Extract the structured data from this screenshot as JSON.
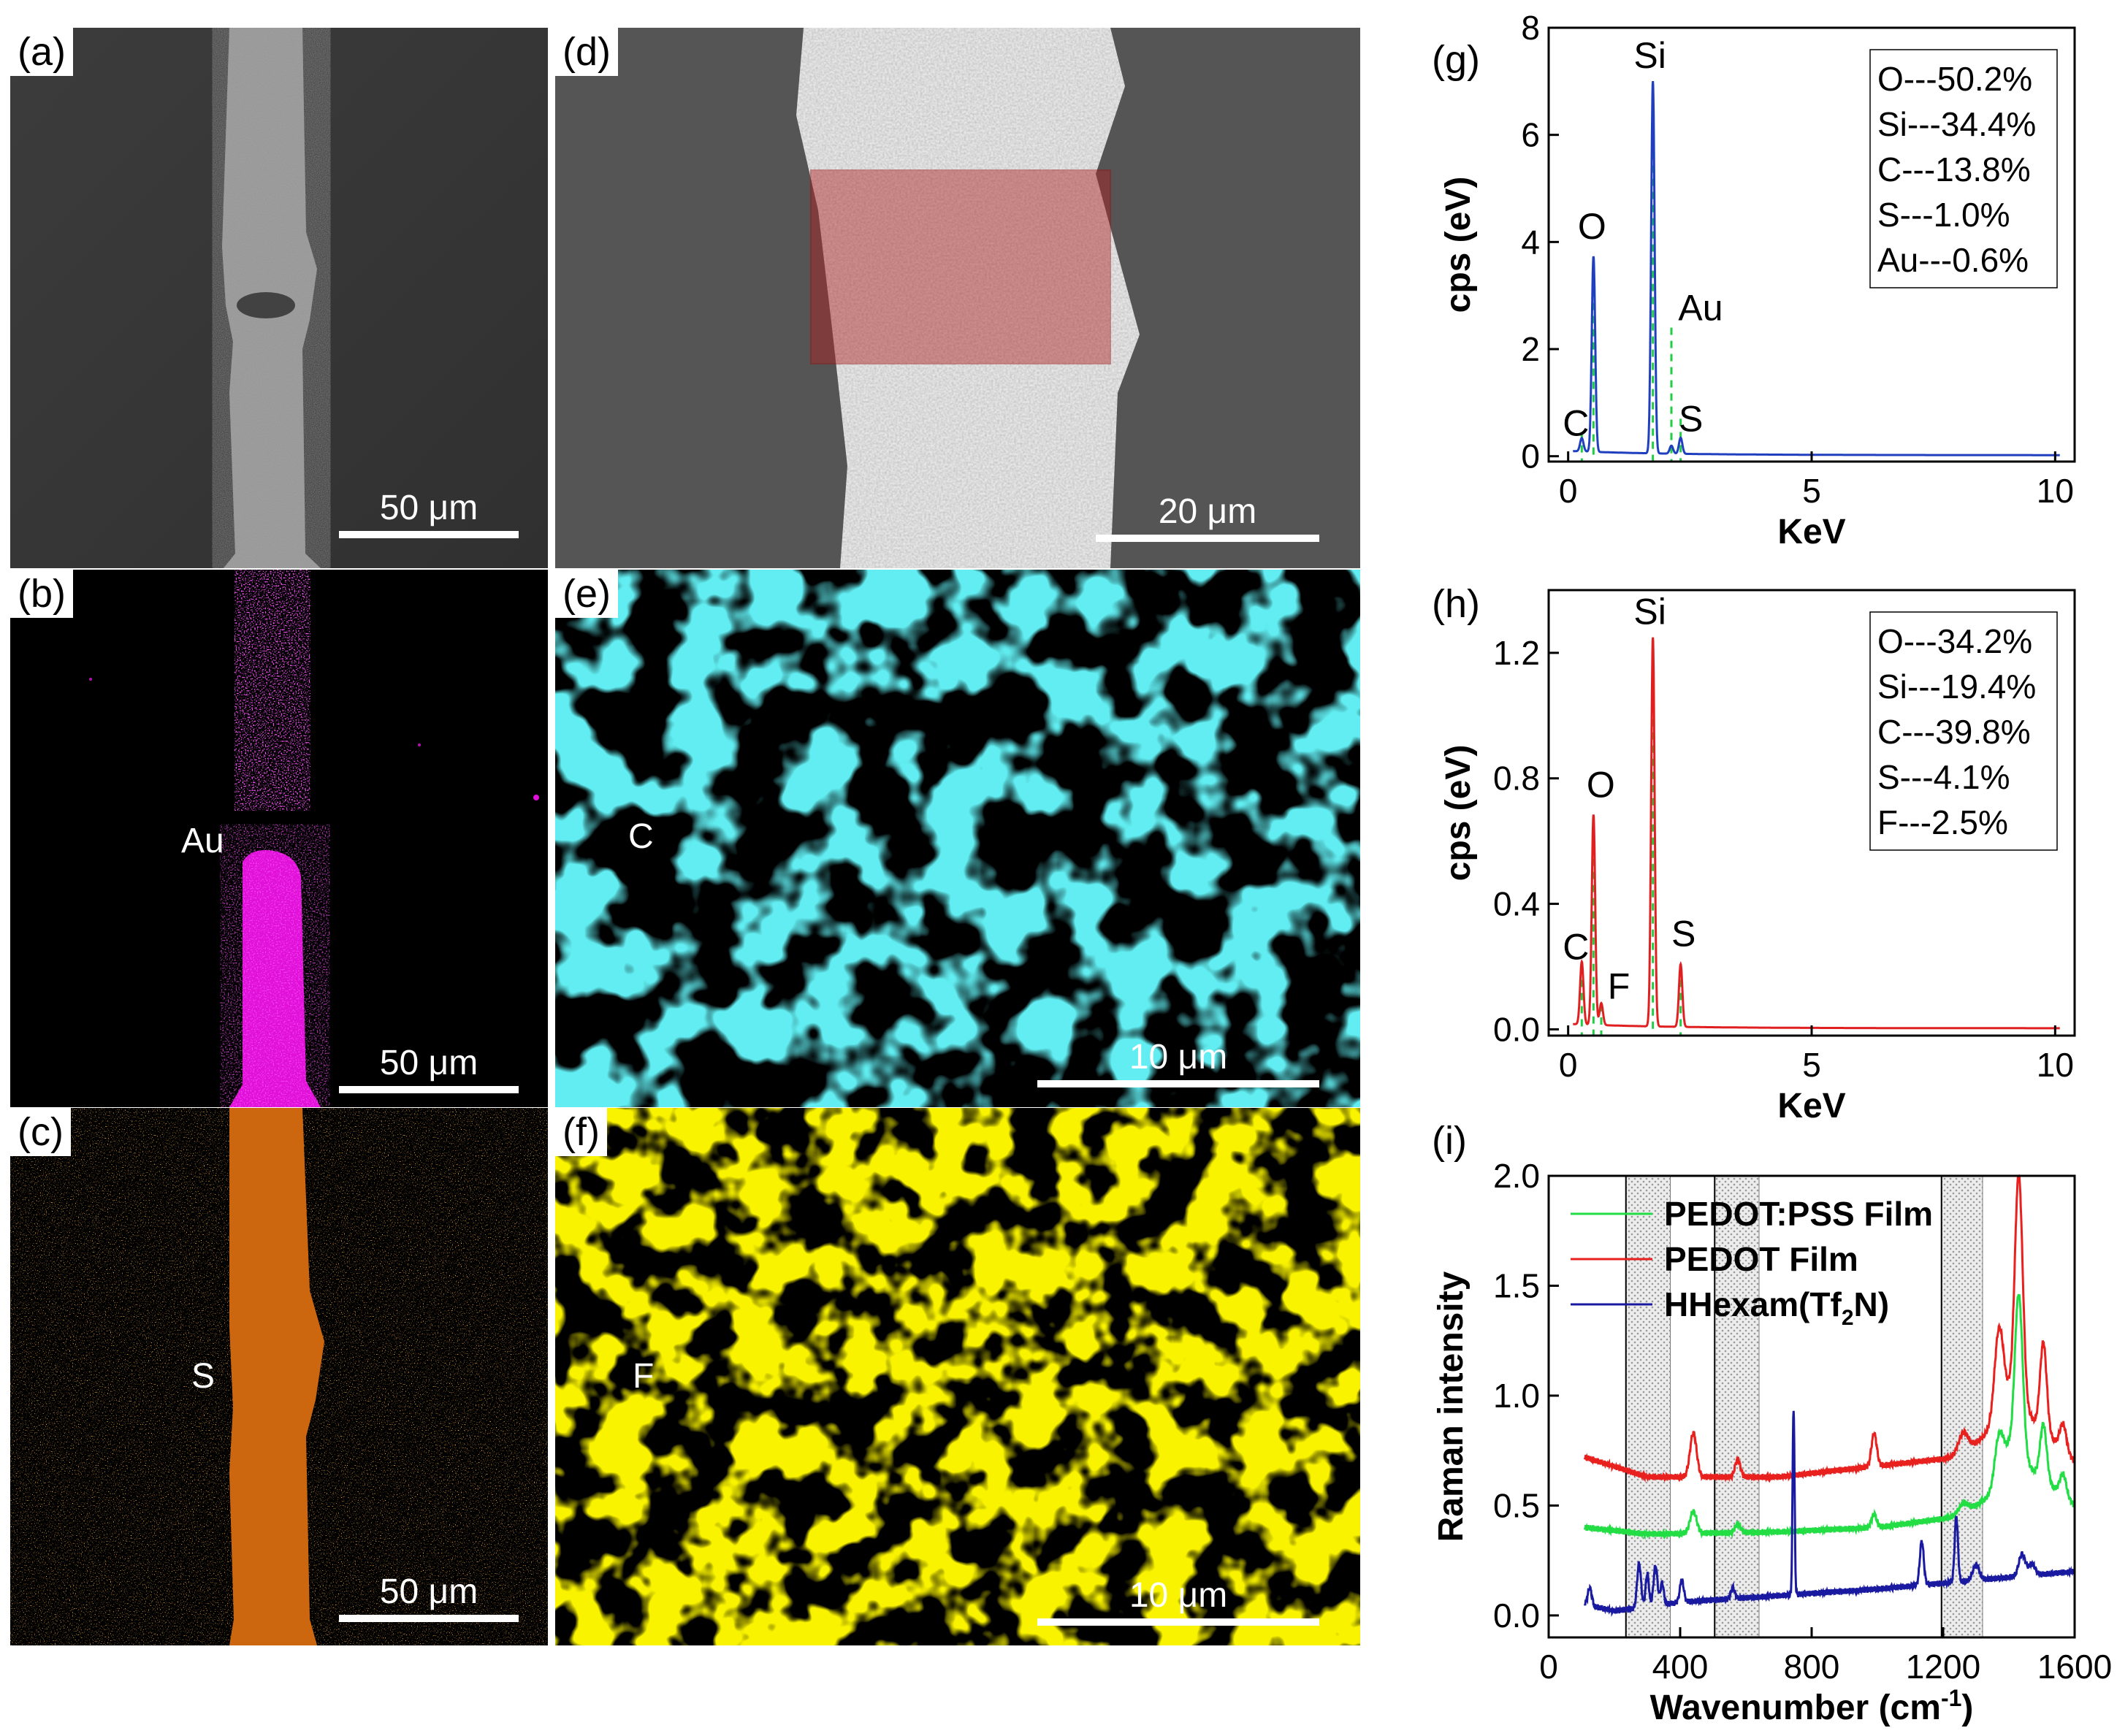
{
  "panels": {
    "a": {
      "label": "(a)",
      "scale": "50 μm"
    },
    "b": {
      "label": "(b)",
      "scale": "50 μm",
      "element": "Au",
      "color": "#ff1aff"
    },
    "c": {
      "label": "(c)",
      "scale": "50 μm",
      "element": "S",
      "color": "#ff7f0e"
    },
    "d": {
      "label": "(d)",
      "scale": "20 μm"
    },
    "e": {
      "label": "(e)",
      "scale": "10 μm",
      "element": "C",
      "color": "#1ee0e6"
    },
    "f": {
      "label": "(f)",
      "scale": "10 μm",
      "element": "F",
      "color": "#f2ea00"
    }
  },
  "chart_data": [
    {
      "id": "g",
      "panel_label": "(g)",
      "type": "line",
      "xlabel": "KeV",
      "ylabel": "cps (eV)",
      "xlim": [
        -0.4,
        10.4
      ],
      "ylim": [
        -0.1,
        8
      ],
      "xticks": [
        0,
        5,
        10
      ],
      "xtick_labels": [
        "0",
        "5",
        "10"
      ],
      "yticks": [
        0,
        2,
        4,
        6,
        8
      ],
      "ytick_labels": [
        "0",
        "2",
        "4",
        "6",
        "8"
      ],
      "line_color": "#1f3fbf",
      "marker_color": "#22cc44",
      "peaks": [
        {
          "label": "C",
          "x": 0.28,
          "y": 0.25
        },
        {
          "label": "O",
          "x": 0.52,
          "y": 3.65
        },
        {
          "label": "Si",
          "x": 1.74,
          "y": 6.95
        },
        {
          "label": "Au",
          "x": 2.12,
          "y": 0.15
        },
        {
          "label": "S",
          "x": 2.31,
          "y": 0.3
        }
      ],
      "marker_lines": [
        0.28,
        0.52,
        1.74,
        2.12,
        2.31
      ],
      "marker_line_tops": [
        0.45,
        3.6,
        6.9,
        2.4,
        0.7
      ],
      "composition": [
        "O---50.2%",
        "Si---34.4%",
        "C---13.8%",
        "S---1.0%",
        "Au---0.6%"
      ]
    },
    {
      "id": "h",
      "panel_label": "(h)",
      "type": "line",
      "xlabel": "KeV",
      "ylabel": "cps (eV)",
      "xlim": [
        -0.4,
        10.4
      ],
      "ylim": [
        -0.02,
        1.4
      ],
      "xticks": [
        0,
        5,
        10
      ],
      "xtick_labels": [
        "0",
        "5",
        "10"
      ],
      "yticks": [
        0.0,
        0.4,
        0.8,
        1.2
      ],
      "ytick_labels": [
        "0.0",
        "0.4",
        "0.8",
        "1.2"
      ],
      "line_color": "#e02020",
      "marker_color": "#22cc44",
      "peaks": [
        {
          "label": "C",
          "x": 0.28,
          "y": 0.2
        },
        {
          "label": "O",
          "x": 0.52,
          "y": 0.67
        },
        {
          "label": "F",
          "x": 0.68,
          "y": 0.07
        },
        {
          "label": "Si",
          "x": 1.74,
          "y": 1.24
        },
        {
          "label": "S",
          "x": 2.31,
          "y": 0.2
        }
      ],
      "marker_lines": [
        0.28,
        0.52,
        0.68,
        1.74,
        2.31
      ],
      "marker_line_tops": [
        0.2,
        0.67,
        0.08,
        1.24,
        0.2
      ],
      "composition": [
        "O---34.2%",
        "Si---19.4%",
        "C---39.8%",
        "S---4.1%",
        "F---2.5%"
      ]
    },
    {
      "id": "i",
      "panel_label": "(i)",
      "type": "line",
      "xlabel_main": "Wavenumber (cm",
      "xlabel_sup": "-1",
      "xlabel_end": ")",
      "ylabel": "Raman intensity",
      "xlim": [
        0,
        1600
      ],
      "ylim": [
        -0.1,
        2.0
      ],
      "xticks": [
        0,
        400,
        800,
        1200,
        1600
      ],
      "xtick_labels": [
        "0",
        "400",
        "800",
        "1200",
        "1600"
      ],
      "yticks": [
        0.0,
        0.5,
        1.0,
        1.5,
        2.0
      ],
      "ytick_labels": [
        "0.0",
        "0.5",
        "1.0",
        "1.5",
        "2.0"
      ],
      "shaded_bands": [
        [
          235,
          370
        ],
        [
          505,
          640
        ],
        [
          1195,
          1320
        ]
      ],
      "series": [
        {
          "name": "PEDOT:PSS Film",
          "color": "#22dd44",
          "baseline": [
            [
              110,
              0.4
            ],
            [
              300,
              0.37
            ],
            [
              700,
              0.38
            ],
            [
              1000,
              0.4
            ],
            [
              1250,
              0.45
            ],
            [
              1350,
              0.55
            ],
            [
              1400,
              0.75
            ],
            [
              1600,
              0.5
            ]
          ],
          "peaks": [
            [
              440,
              0.1,
              10
            ],
            [
              575,
              0.04,
              8
            ],
            [
              990,
              0.06,
              8
            ],
            [
              1260,
              0.05,
              15
            ],
            [
              1370,
              0.2,
              14
            ],
            [
              1430,
              0.75,
              12
            ],
            [
              1505,
              0.25,
              10
            ],
            [
              1565,
              0.1,
              10
            ]
          ]
        },
        {
          "name": "PEDOT Film",
          "color": "#e8201e",
          "baseline": [
            [
              110,
              0.72
            ],
            [
              300,
              0.63
            ],
            [
              700,
              0.63
            ],
            [
              1000,
              0.68
            ],
            [
              1250,
              0.72
            ],
            [
              1350,
              0.85
            ],
            [
              1400,
              1.0
            ],
            [
              1600,
              0.7
            ]
          ],
          "peaks": [
            [
              440,
              0.2,
              10
            ],
            [
              575,
              0.08,
              8
            ],
            [
              990,
              0.15,
              8
            ],
            [
              1260,
              0.1,
              15
            ],
            [
              1370,
              0.4,
              14
            ],
            [
              1430,
              1.05,
              12
            ],
            [
              1505,
              0.4,
              10
            ],
            [
              1565,
              0.12,
              10
            ]
          ]
        },
        {
          "name": "HHexam(Tf2N)",
          "color": "#1a1aa0",
          "baseline": [
            [
              110,
              0.05
            ],
            [
              200,
              0.02
            ],
            [
              400,
              0.06
            ],
            [
              700,
              0.09
            ],
            [
              1000,
              0.12
            ],
            [
              1300,
              0.16
            ],
            [
              1600,
              0.2
            ]
          ],
          "peaks": [
            [
              125,
              0.08,
              6
            ],
            [
              275,
              0.2,
              6
            ],
            [
              300,
              0.15,
              5
            ],
            [
              325,
              0.18,
              6
            ],
            [
              345,
              0.1,
              5
            ],
            [
              405,
              0.1,
              6
            ],
            [
              560,
              0.05,
              6
            ],
            [
              745,
              0.85,
              3
            ],
            [
              1135,
              0.2,
              6
            ],
            [
              1240,
              0.3,
              5
            ],
            [
              1300,
              0.07,
              10
            ],
            [
              1440,
              0.1,
              10
            ],
            [
              1470,
              0.05,
              10
            ]
          ]
        }
      ],
      "legend": [
        {
          "text": "PEDOT:PSS Film",
          "color": "#22dd44"
        },
        {
          "text": "PEDOT Film",
          "color": "#e8201e"
        },
        {
          "main": "HHexam(Tf",
          "sub": "2",
          "end": "N)",
          "color": "#1a1aa0"
        }
      ]
    }
  ]
}
